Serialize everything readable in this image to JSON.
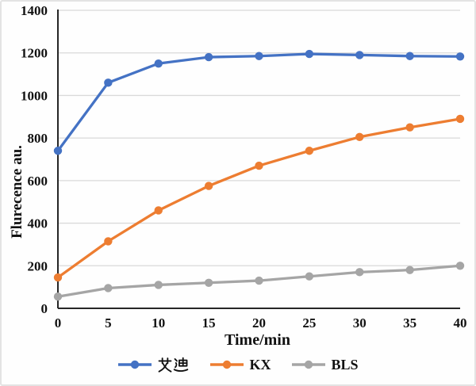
{
  "chart_data": {
    "type": "line",
    "x": [
      0,
      5,
      10,
      15,
      20,
      25,
      30,
      35,
      40
    ],
    "series": [
      {
        "name": "艾迪",
        "color": "#4472C4",
        "values": [
          740,
          1060,
          1150,
          1180,
          1185,
          1195,
          1190,
          1185,
          1183
        ]
      },
      {
        "name": "KX",
        "color": "#ED7D31",
        "values": [
          145,
          315,
          460,
          575,
          670,
          740,
          805,
          850,
          890
        ]
      },
      {
        "name": "BLS",
        "color": "#A5A5A5",
        "values": [
          55,
          95,
          110,
          120,
          130,
          150,
          170,
          180,
          200
        ]
      }
    ],
    "title": "",
    "xlabel": "Time/min",
    "ylabel": "Flurecence au.",
    "ylim": [
      0,
      1400
    ],
    "xticks": [
      0,
      5,
      10,
      15,
      20,
      25,
      30,
      35,
      40
    ],
    "yticks": [
      0,
      200,
      400,
      600,
      800,
      1000,
      1200,
      1400
    ],
    "grid": "horizontal",
    "legend_position": "bottom",
    "colors": {
      "gridline": "#D9D9D9",
      "axis": "#262626",
      "text": "#111111",
      "background": "#FEFEFE",
      "frame_border": "#E3E3E3"
    }
  }
}
